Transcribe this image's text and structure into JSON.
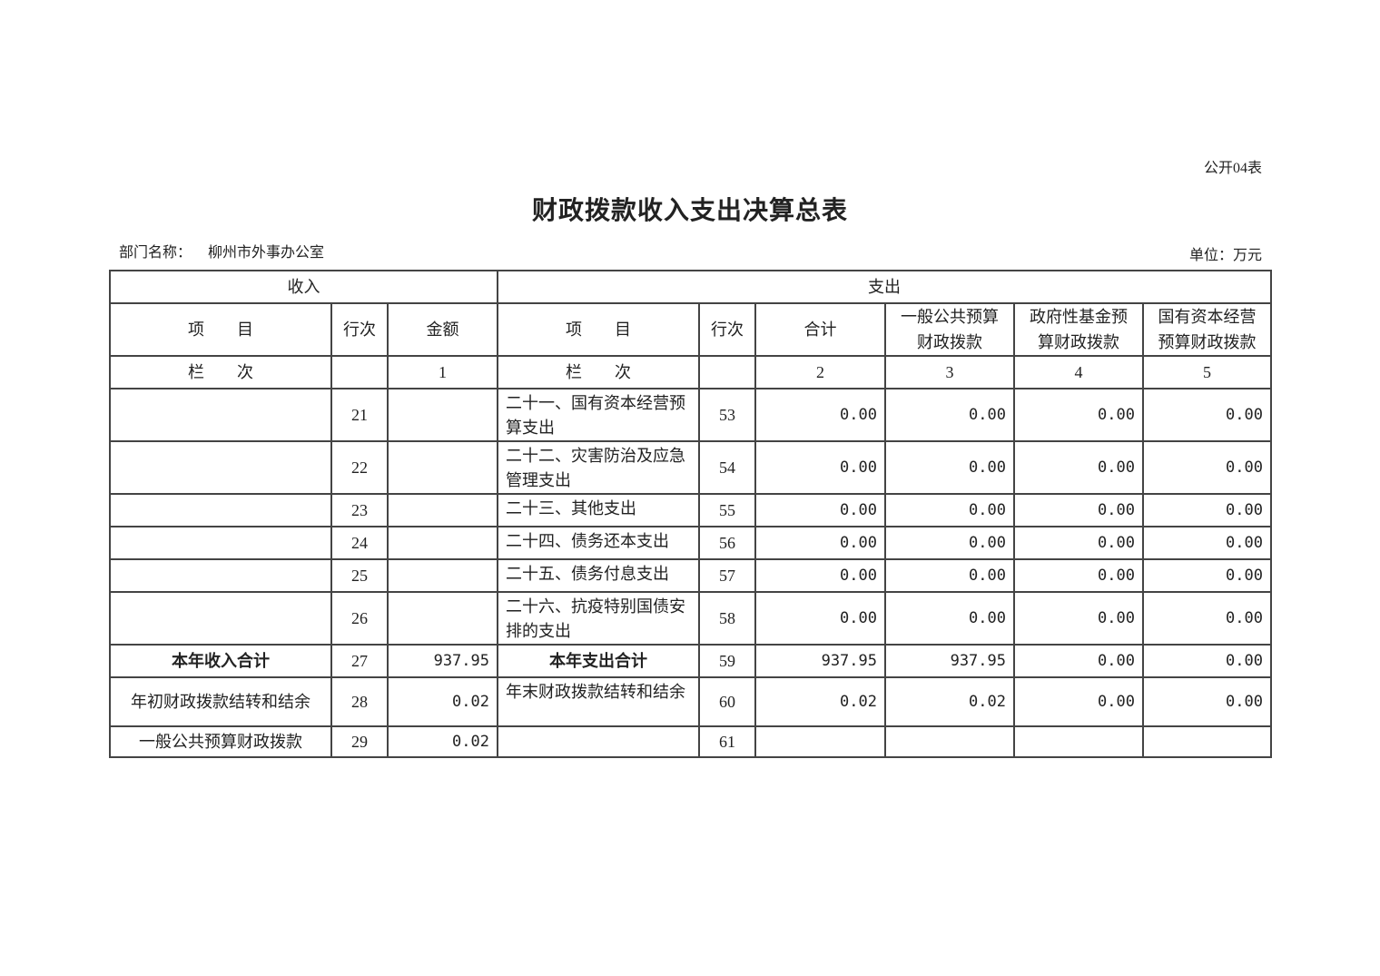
{
  "form_code": "公开04表",
  "title": "财政拨款收入支出决算总表",
  "department_label": "部门名称：",
  "department_name": "柳州市外事办公室",
  "unit": "单位：万元",
  "table": {
    "group_headers": [
      "收入",
      "支出"
    ],
    "columns": [
      "项　　目",
      "行次",
      "金额",
      "项　　目",
      "行次",
      "合计",
      "一般公共预算财政拨款",
      "政府性基金预算财政拨款",
      "国有资本经营预算财政拨款"
    ],
    "column_index_row": [
      "栏　　次",
      "",
      "1",
      "栏　　次",
      "",
      "2",
      "3",
      "4",
      "5"
    ],
    "rows": [
      [
        "",
        "21",
        "",
        "二十一、国有资本经营预算支出",
        "53",
        "0.00",
        "0.00",
        "0.00",
        "0.00"
      ],
      [
        "",
        "22",
        "",
        "二十二、灾害防治及应急管理支出",
        "54",
        "0.00",
        "0.00",
        "0.00",
        "0.00"
      ],
      [
        "",
        "23",
        "",
        "二十三、其他支出",
        "55",
        "0.00",
        "0.00",
        "0.00",
        "0.00"
      ],
      [
        "",
        "24",
        "",
        "二十四、债务还本支出",
        "56",
        "0.00",
        "0.00",
        "0.00",
        "0.00"
      ],
      [
        "",
        "25",
        "",
        "二十五、债务付息支出",
        "57",
        "0.00",
        "0.00",
        "0.00",
        "0.00"
      ],
      [
        "",
        "26",
        "",
        "二十六、抗疫特别国债安排的支出",
        "58",
        "0.00",
        "0.00",
        "0.00",
        "0.00"
      ],
      [
        "本年收入合计",
        "27",
        "937.95",
        "本年支出合计",
        "59",
        "937.95",
        "937.95",
        "0.00",
        "0.00"
      ],
      [
        "年初财政拨款结转和结余",
        "28",
        "0.02",
        "年末财政拨款结转和结余",
        "60",
        "0.02",
        "0.02",
        "0.00",
        "0.00"
      ],
      [
        "一般公共预算财政拨款",
        "29",
        "0.02",
        "",
        "61",
        "",
        "",
        "",
        ""
      ]
    ]
  }
}
